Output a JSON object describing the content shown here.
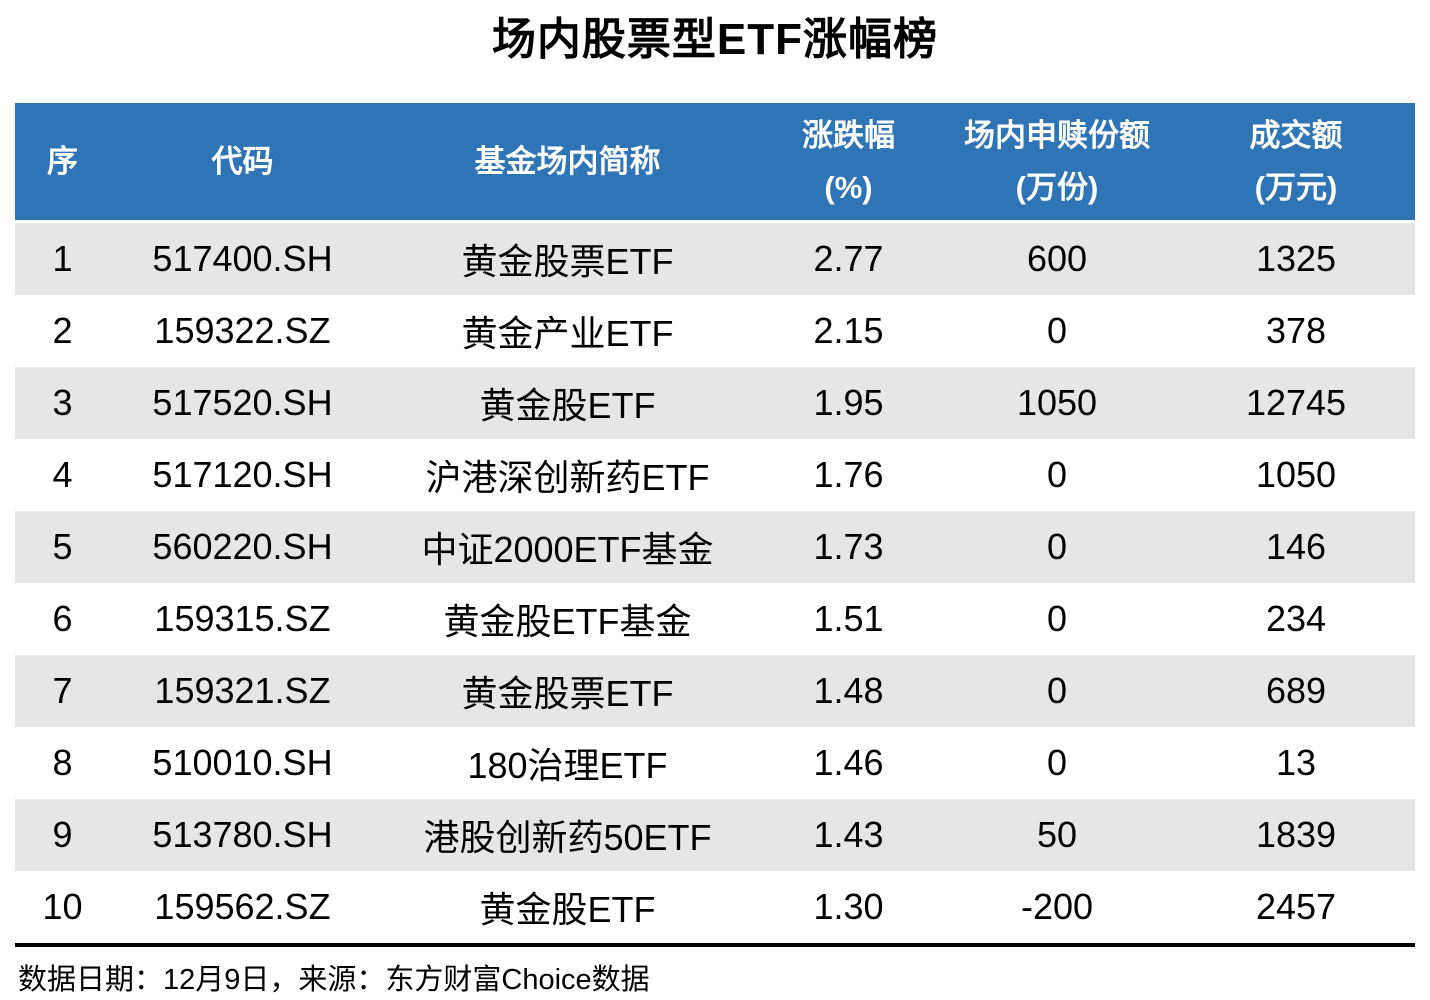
{
  "title": "场内股票型ETF涨幅榜",
  "colors": {
    "header_bg": "#2F74B5",
    "header_text": "#FFFFFF",
    "row_alt_bg": "#E6E6E6",
    "row_bg": "#FFFFFF",
    "body_text": "#000000",
    "divider": "#000000"
  },
  "table": {
    "headers": [
      {
        "line1": "序",
        "line2": ""
      },
      {
        "line1": "代码",
        "line2": ""
      },
      {
        "line1": "基金场内简称",
        "line2": ""
      },
      {
        "line1": "涨跌幅",
        "line2": "(%)"
      },
      {
        "line1": "场内申赎份额",
        "line2": "(万份)"
      },
      {
        "line1": "成交额",
        "line2": "(万元)"
      }
    ],
    "rows": [
      {
        "no": "1",
        "code": "517400.SH",
        "name": "黄金股票ETF",
        "chg": "2.77",
        "shares": "600",
        "turnover": "1325"
      },
      {
        "no": "2",
        "code": "159322.SZ",
        "name": "黄金产业ETF",
        "chg": "2.15",
        "shares": "0",
        "turnover": "378"
      },
      {
        "no": "3",
        "code": "517520.SH",
        "name": "黄金股ETF",
        "chg": "1.95",
        "shares": "1050",
        "turnover": "12745"
      },
      {
        "no": "4",
        "code": "517120.SH",
        "name": "沪港深创新药ETF",
        "chg": "1.76",
        "shares": "0",
        "turnover": "1050"
      },
      {
        "no": "5",
        "code": "560220.SH",
        "name": "中证2000ETF基金",
        "chg": "1.73",
        "shares": "0",
        "turnover": "146"
      },
      {
        "no": "6",
        "code": "159315.SZ",
        "name": "黄金股ETF基金",
        "chg": "1.51",
        "shares": "0",
        "turnover": "234"
      },
      {
        "no": "7",
        "code": "159321.SZ",
        "name": "黄金股票ETF",
        "chg": "1.48",
        "shares": "0",
        "turnover": "689"
      },
      {
        "no": "8",
        "code": "510010.SH",
        "name": "180治理ETF",
        "chg": "1.46",
        "shares": "0",
        "turnover": "13"
      },
      {
        "no": "9",
        "code": "513780.SH",
        "name": "港股创新药50ETF",
        "chg": "1.43",
        "shares": "50",
        "turnover": "1839"
      },
      {
        "no": "10",
        "code": "159562.SZ",
        "name": "黄金股ETF",
        "chg": "1.30",
        "shares": "-200",
        "turnover": "2457"
      }
    ]
  },
  "footer": {
    "note": "数据日期：12月9日，来源：东方财富Choice数据"
  },
  "chart_data": {
    "type": "table",
    "title": "场内股票型ETF涨幅榜",
    "columns": [
      "序",
      "代码",
      "基金场内简称",
      "涨跌幅(%)",
      "场内申赎份额(万份)",
      "成交额(万元)"
    ],
    "rows": [
      [
        1,
        "517400.SH",
        "黄金股票ETF",
        2.77,
        600,
        1325
      ],
      [
        2,
        "159322.SZ",
        "黄金产业ETF",
        2.15,
        0,
        378
      ],
      [
        3,
        "517520.SH",
        "黄金股ETF",
        1.95,
        1050,
        12745
      ],
      [
        4,
        "517120.SH",
        "沪港深创新药ETF",
        1.76,
        0,
        1050
      ],
      [
        5,
        "560220.SH",
        "中证2000ETF基金",
        1.73,
        0,
        146
      ],
      [
        6,
        "159315.SZ",
        "黄金股ETF基金",
        1.51,
        0,
        234
      ],
      [
        7,
        "159321.SZ",
        "黄金股票ETF",
        1.48,
        0,
        689
      ],
      [
        8,
        "510010.SH",
        "180治理ETF",
        1.46,
        0,
        13
      ],
      [
        9,
        "513780.SH",
        "港股创新药50ETF",
        1.43,
        50,
        1839
      ],
      [
        10,
        "159562.SZ",
        "黄金股ETF",
        1.3,
        -200,
        2457
      ]
    ],
    "source_note": "数据日期：12月9日，来源：东方财富Choice数据"
  }
}
